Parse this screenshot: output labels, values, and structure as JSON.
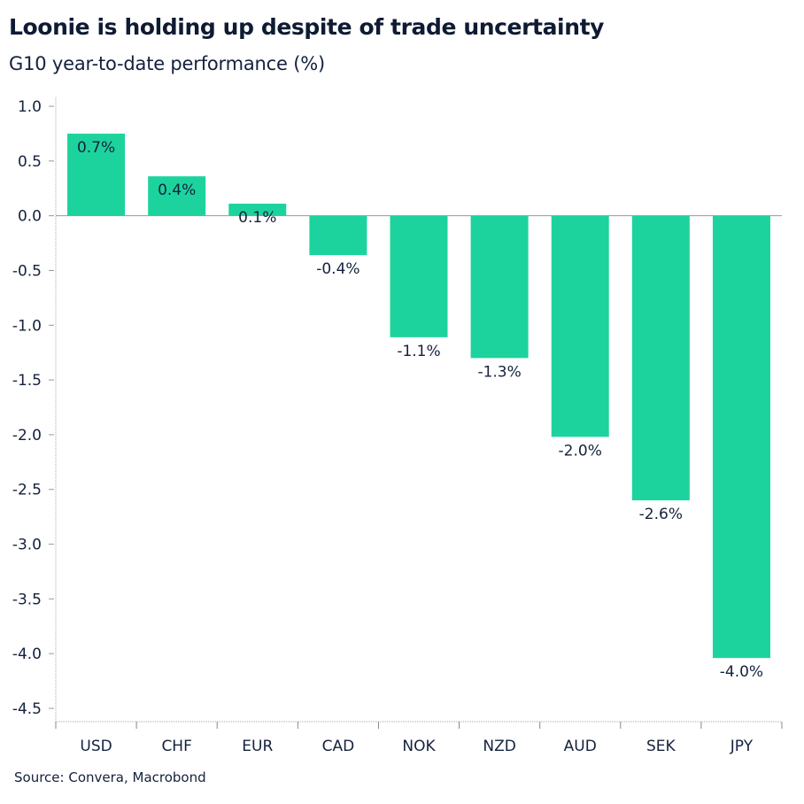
{
  "chart_data": {
    "type": "bar",
    "title": "Loonie is holding up despite of trade uncertainty",
    "subtitle": "G10 year-to-date performance (%)",
    "source": "Source: Convera, Macrobond",
    "categories": [
      "USD",
      "CHF",
      "EUR",
      "CAD",
      "NOK",
      "NZD",
      "AUD",
      "SEK",
      "JPY"
    ],
    "values": [
      0.75,
      0.36,
      0.11,
      -0.36,
      -1.11,
      -1.3,
      -2.02,
      -2.6,
      -4.04
    ],
    "data_labels": [
      "0.7%",
      "0.4%",
      "0.1%",
      "-0.4%",
      "-1.1%",
      "-1.3%",
      "-2.0%",
      "-2.6%",
      "-4.0%"
    ],
    "yticks": [
      "1.0",
      "0.5",
      "0.0",
      "-0.5",
      "-1.0",
      "-1.5",
      "-2.0",
      "-2.5",
      "-3.0",
      "-3.5",
      "-4.0",
      "-4.5"
    ],
    "ylim": [
      -4.5,
      1.0
    ],
    "grid": false,
    "legend": "none",
    "bar_color": "#1dd39d"
  }
}
